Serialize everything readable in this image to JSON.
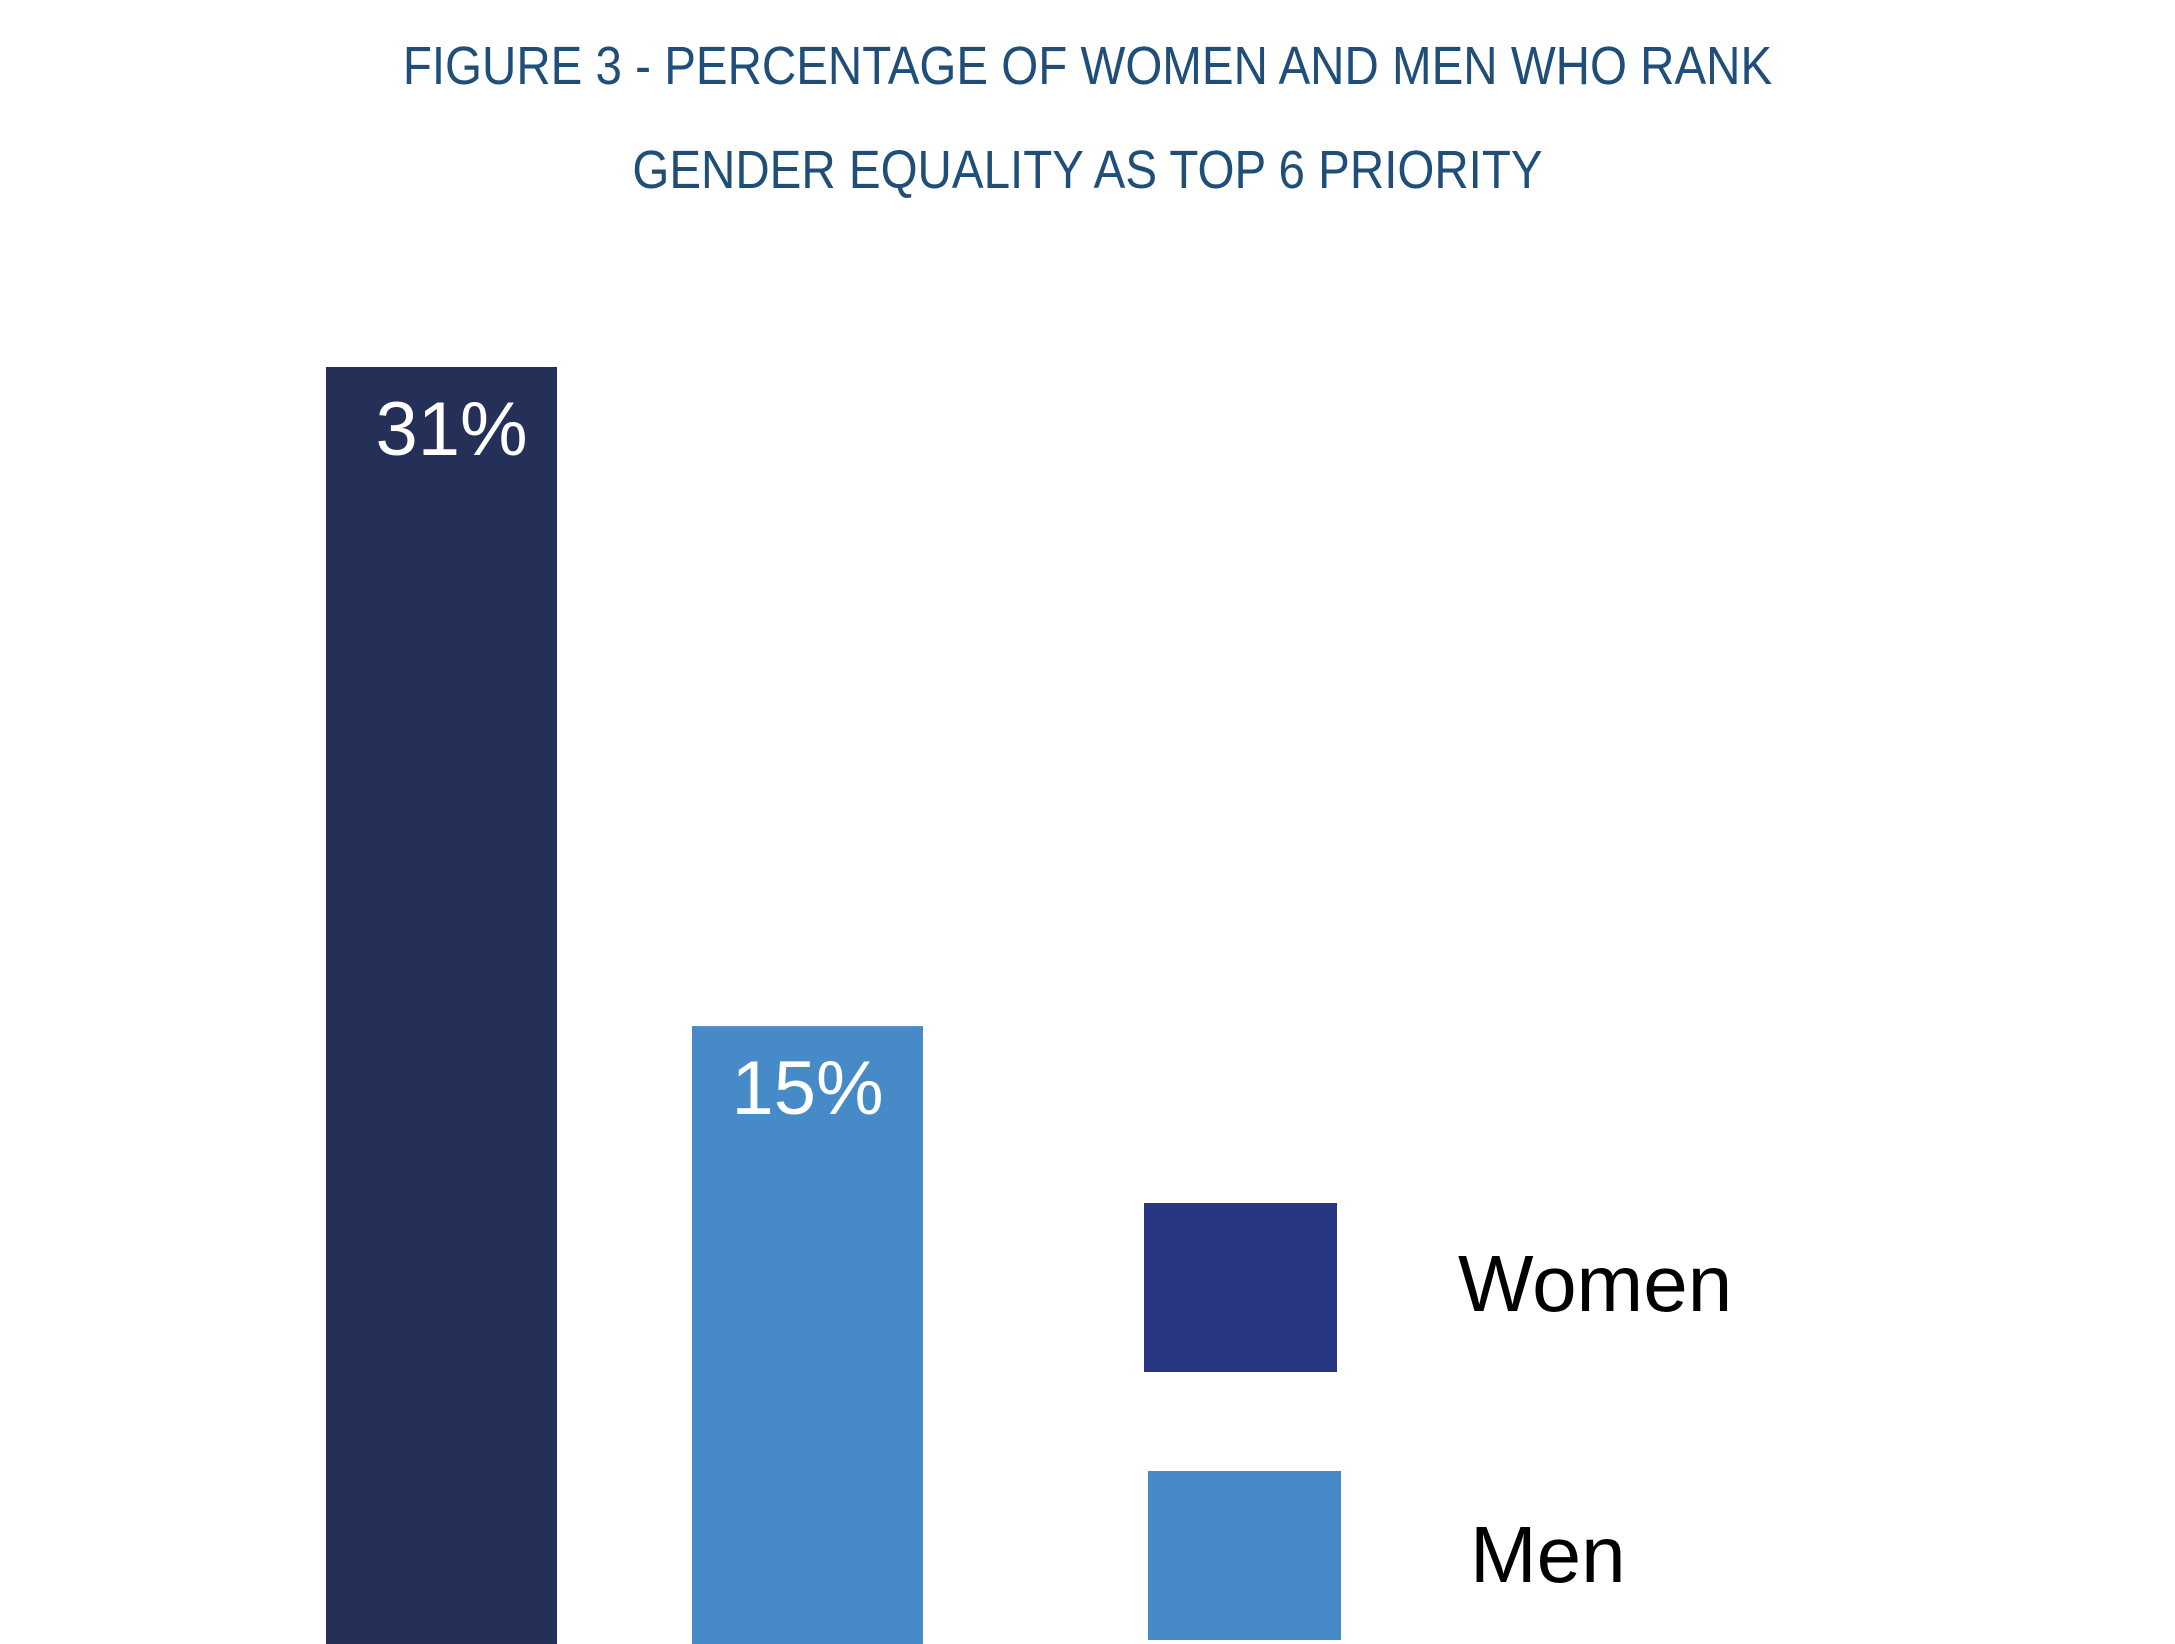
{
  "chart_data": {
    "type": "bar",
    "title_lines": [
      "FIGURE 3 - PERCENTAGE OF WOMEN AND MEN WHO RANK",
      "GENDER EQUALITY AS TOP 6 PRIORITY"
    ],
    "categories": [
      "Women",
      "Men"
    ],
    "values": [
      31,
      15
    ],
    "value_labels": [
      "31%",
      "15%"
    ],
    "colors": [
      "#253059",
      "#468AC8"
    ],
    "legend": [
      {
        "label": "Women",
        "color": "#283583"
      },
      {
        "label": "Men",
        "color": "#468AC8"
      }
    ],
    "legend_position": "right",
    "ylim": [
      0,
      31
    ],
    "grid": false,
    "axes_visible": false
  }
}
